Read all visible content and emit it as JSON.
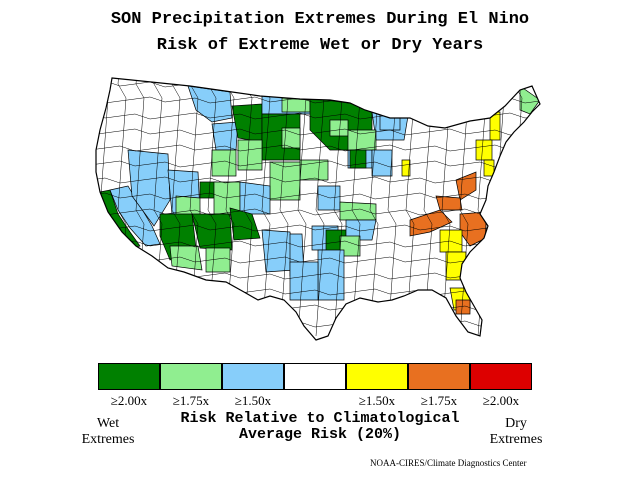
{
  "title_line1": "SON Precipitation Extremes During El Nino",
  "title_line2": "Risk of Extreme Wet or Dry Years",
  "legend": [
    {
      "label": "≥2.00x",
      "color": "#008000"
    },
    {
      "label": "≥1.75x",
      "color": "#90ee90"
    },
    {
      "label": "≥1.50x",
      "color": "#87cefa"
    },
    {
      "label": "",
      "color": "#ffffff"
    },
    {
      "label": "≥1.50x",
      "color": "#ffff00"
    },
    {
      "label": "≥1.75x",
      "color": "#e87020"
    },
    {
      "label": "≥2.00x",
      "color": "#dd0000"
    }
  ],
  "wet_label_line1": "Wet",
  "wet_label_line2": "Extremes",
  "dry_label_line1": "Dry",
  "dry_label_line2": "Extremes",
  "caption_line1": "Risk Relative to Climatological",
  "caption_line2": "Average Risk (20%)",
  "credit": "NOAA-CIRES/Climate Diagnostics Center",
  "colors": {
    "strong_wet": "#008000",
    "moderate_wet": "#90ee90",
    "weak_wet": "#87cefa",
    "neutral": "#ffffff",
    "weak_dry": "#ffff00",
    "moderate_dry": "#e87020",
    "strong_dry": "#dd0000",
    "border": "#000000"
  }
}
